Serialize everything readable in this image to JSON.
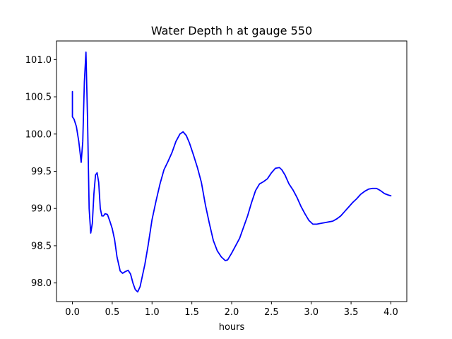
{
  "chart_data": {
    "type": "line",
    "title": "Water Depth h at gauge 550",
    "xlabel": "hours",
    "ylabel": "",
    "xlim": [
      -0.2,
      4.2
    ],
    "ylim": [
      97.75,
      101.25
    ],
    "xticks": [
      0.0,
      0.5,
      1.0,
      1.5,
      2.0,
      2.5,
      3.0,
      3.5,
      4.0
    ],
    "xtick_labels": [
      "0.0",
      "0.5",
      "1.0",
      "1.5",
      "2.0",
      "2.5",
      "3.0",
      "3.5",
      "4.0"
    ],
    "yticks": [
      98.0,
      98.5,
      99.0,
      99.5,
      100.0,
      100.5,
      101.0
    ],
    "ytick_labels": [
      "98.0",
      "98.5",
      "99.0",
      "99.5",
      "100.0",
      "100.5",
      "101.0"
    ],
    "grid": false,
    "series": [
      {
        "name": "",
        "color": "#0000ff",
        "x": [
          0.0,
          0.0,
          0.02,
          0.05,
          0.08,
          0.11,
          0.13,
          0.15,
          0.17,
          0.19,
          0.21,
          0.23,
          0.25,
          0.27,
          0.29,
          0.31,
          0.33,
          0.35,
          0.37,
          0.39,
          0.41,
          0.44,
          0.47,
          0.5,
          0.53,
          0.56,
          0.6,
          0.63,
          0.66,
          0.7,
          0.73,
          0.76,
          0.79,
          0.82,
          0.85,
          0.88,
          0.91,
          0.95,
          1.0,
          1.05,
          1.1,
          1.15,
          1.2,
          1.25,
          1.3,
          1.35,
          1.39,
          1.43,
          1.47,
          1.52,
          1.57,
          1.62,
          1.67,
          1.72,
          1.77,
          1.82,
          1.87,
          1.92,
          1.95,
          2.0,
          2.05,
          2.1,
          2.15,
          2.2,
          2.25,
          2.3,
          2.35,
          2.4,
          2.45,
          2.5,
          2.55,
          2.6,
          2.63,
          2.67,
          2.72,
          2.77,
          2.82,
          2.87,
          2.92,
          2.97,
          3.02,
          3.07,
          3.12,
          3.17,
          3.22,
          3.27,
          3.32,
          3.37,
          3.42,
          3.47,
          3.52,
          3.57,
          3.62,
          3.67,
          3.72,
          3.77,
          3.82,
          3.87,
          3.92,
          3.97,
          4.0
        ],
        "y": [
          100.57,
          100.23,
          100.2,
          100.1,
          99.9,
          99.62,
          99.9,
          100.7,
          101.1,
          100.2,
          99.0,
          98.67,
          98.8,
          99.2,
          99.45,
          99.48,
          99.35,
          99.0,
          98.9,
          98.9,
          98.93,
          98.92,
          98.83,
          98.73,
          98.58,
          98.35,
          98.16,
          98.13,
          98.15,
          98.17,
          98.12,
          98.0,
          97.91,
          97.88,
          97.95,
          98.1,
          98.25,
          98.5,
          98.85,
          99.1,
          99.33,
          99.52,
          99.63,
          99.75,
          99.9,
          100.0,
          100.03,
          99.98,
          99.88,
          99.72,
          99.55,
          99.35,
          99.05,
          98.8,
          98.57,
          98.43,
          98.35,
          98.3,
          98.31,
          98.4,
          98.5,
          98.6,
          98.75,
          98.9,
          99.08,
          99.24,
          99.33,
          99.36,
          99.4,
          99.48,
          99.54,
          99.55,
          99.52,
          99.45,
          99.33,
          99.25,
          99.15,
          99.03,
          98.93,
          98.84,
          98.79,
          98.79,
          98.8,
          98.81,
          98.82,
          98.83,
          98.86,
          98.9,
          98.96,
          99.02,
          99.08,
          99.13,
          99.19,
          99.23,
          99.26,
          99.27,
          99.27,
          99.24,
          99.2,
          99.18,
          99.17
        ]
      }
    ]
  }
}
